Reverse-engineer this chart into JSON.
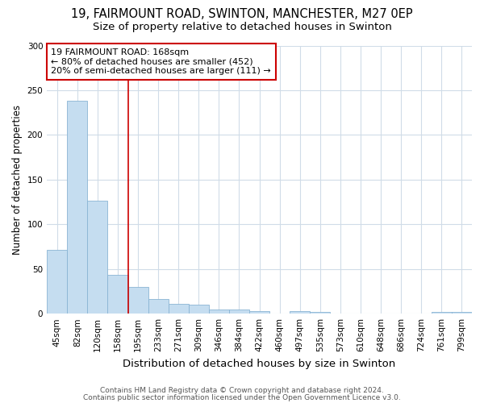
{
  "title1": "19, FAIRMOUNT ROAD, SWINTON, MANCHESTER, M27 0EP",
  "title2": "Size of property relative to detached houses in Swinton",
  "xlabel": "Distribution of detached houses by size in Swinton",
  "ylabel": "Number of detached properties",
  "categories": [
    "45sqm",
    "82sqm",
    "120sqm",
    "158sqm",
    "195sqm",
    "233sqm",
    "271sqm",
    "309sqm",
    "346sqm",
    "384sqm",
    "422sqm",
    "460sqm",
    "497sqm",
    "535sqm",
    "573sqm",
    "610sqm",
    "648sqm",
    "686sqm",
    "724sqm",
    "761sqm",
    "799sqm"
  ],
  "values": [
    71,
    238,
    126,
    43,
    30,
    16,
    11,
    10,
    5,
    5,
    3,
    0,
    3,
    2,
    0,
    0,
    0,
    0,
    0,
    2,
    2
  ],
  "bar_color": "#c5ddf0",
  "bar_edge_color": "#8ab4d4",
  "vline_x": 3.5,
  "vline_color": "#cc0000",
  "annotation_text": "19 FAIRMOUNT ROAD: 168sqm\n← 80% of detached houses are smaller (452)\n20% of semi-detached houses are larger (111) →",
  "annotation_box_color": "white",
  "annotation_box_edge_color": "#cc0000",
  "ylim": [
    0,
    300
  ],
  "yticks": [
    0,
    50,
    100,
    150,
    200,
    250,
    300
  ],
  "footer1": "Contains HM Land Registry data © Crown copyright and database right 2024.",
  "footer2": "Contains public sector information licensed under the Open Government Licence v3.0.",
  "background_color": "#ffffff",
  "grid_color": "#d0dce8",
  "title1_fontsize": 10.5,
  "title2_fontsize": 9.5,
  "xlabel_fontsize": 9.5,
  "ylabel_fontsize": 8.5,
  "tick_fontsize": 7.5,
  "footer_fontsize": 6.5,
  "annot_fontsize": 8.0
}
